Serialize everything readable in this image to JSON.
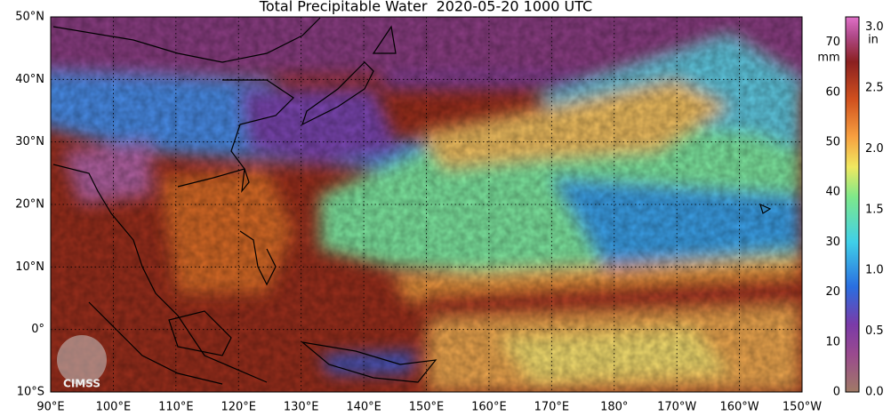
{
  "title": "Total Precipitable Water  2020-05-20 1000 UTC",
  "lat_labels": [
    "50°N",
    "40°N",
    "30°N",
    "20°N",
    "10°N",
    "0°",
    "10°S"
  ],
  "lon_labels": [
    "90°E",
    "100°E",
    "110°E",
    "120°E",
    "130°E",
    "140°E",
    "150°E",
    "160°E",
    "170°E",
    "180°",
    "170°W",
    "160°W",
    "150°W"
  ],
  "colorbar": {
    "mm_unit": "mm",
    "in_unit": "in",
    "mm_labels": [
      "0",
      "10",
      "20",
      "30",
      "40",
      "50",
      "60",
      "70"
    ],
    "in_labels": [
      "0.0",
      "0.5",
      "1.0",
      "1.5",
      "2.0",
      "2.5",
      "3.0"
    ]
  },
  "logo": "CIMSS"
}
